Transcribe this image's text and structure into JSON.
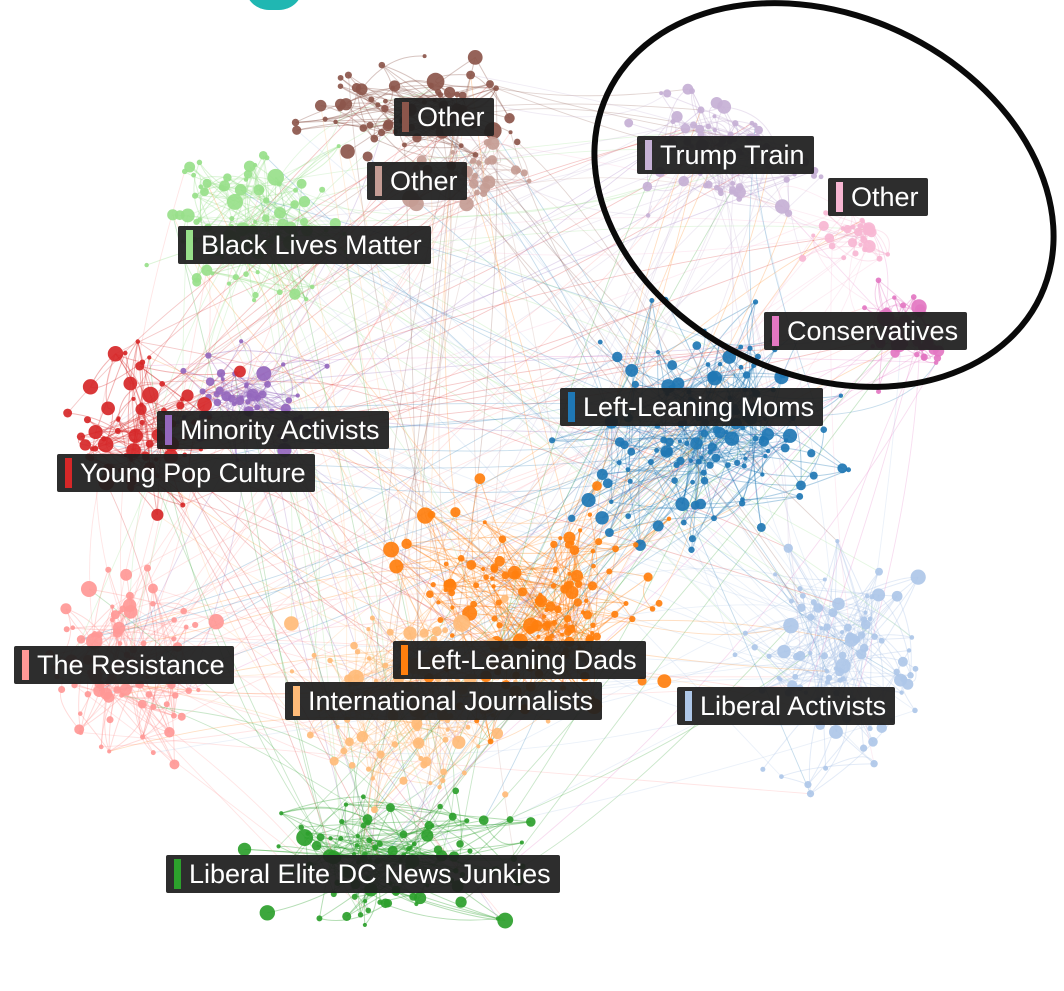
{
  "clusters": [
    {
      "key": "other_brown",
      "label": "Other",
      "color": "#8c564b"
    },
    {
      "key": "other_tan",
      "label": "Other",
      "color": "#c49c94"
    },
    {
      "key": "black_lives_matter",
      "label": "Black Lives Matter",
      "color": "#98df8a"
    },
    {
      "key": "trump_train",
      "label": "Trump Train",
      "color": "#c5b0d5"
    },
    {
      "key": "other_pink",
      "label": "Other",
      "color": "#f7b6d2"
    },
    {
      "key": "conservatives",
      "label": "Conservatives",
      "color": "#e377c2"
    },
    {
      "key": "left_leaning_moms",
      "label": "Left-Leaning Moms",
      "color": "#1f77b4"
    },
    {
      "key": "minority_activists",
      "label": "Minority Activists",
      "color": "#9467bd"
    },
    {
      "key": "young_pop_culture",
      "label": "Young Pop Culture",
      "color": "#d62728"
    },
    {
      "key": "the_resistance",
      "label": "The Resistance",
      "color": "#ff9896"
    },
    {
      "key": "left_leaning_dads",
      "label": "Left-Leaning Dads",
      "color": "#ff7f0e"
    },
    {
      "key": "international_journalists",
      "label": "International Journalists",
      "color": "#ffbb78"
    },
    {
      "key": "liberal_activists",
      "label": "Liberal Activists",
      "color": "#aec7e8"
    },
    {
      "key": "liberal_elite_dc_news_junkies",
      "label": "Liberal Elite DC News Junkies",
      "color": "#2ca02c"
    }
  ],
  "highlight_color": "#0a0a0a",
  "heading_color": "#20b7b2"
}
